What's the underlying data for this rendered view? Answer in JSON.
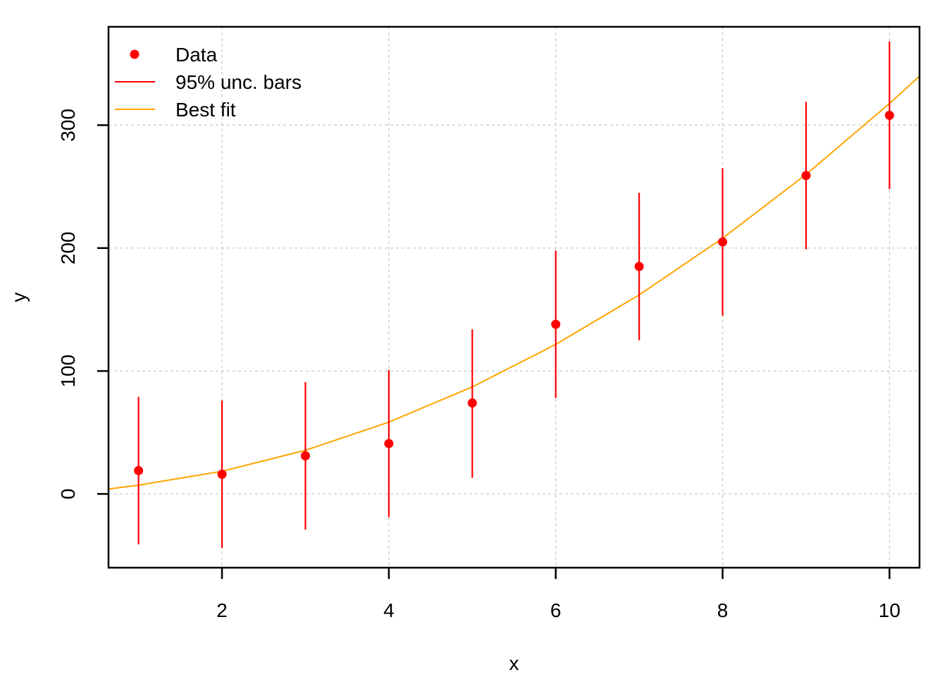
{
  "chart_data": {
    "type": "scatter",
    "title": "",
    "xlabel": "x",
    "ylabel": "y",
    "xlim": [
      0.64,
      10.36
    ],
    "ylim": [
      -60,
      380
    ],
    "x_ticks": [
      2,
      4,
      6,
      8,
      10
    ],
    "y_ticks": [
      0,
      100,
      200,
      300
    ],
    "grid": true,
    "legend_position": "top-left",
    "colors": {
      "data": "#ff0000",
      "bars": "#ff0000",
      "fit": "#ffa500"
    },
    "legend": [
      {
        "label": "Data",
        "kind": "point",
        "color": "#ff0000"
      },
      {
        "label": "95% unc. bars",
        "kind": "line",
        "color": "#ff0000"
      },
      {
        "label": "Best fit",
        "kind": "line",
        "color": "#ffa500"
      }
    ],
    "series": [
      {
        "kind": "points",
        "x": [
          1,
          2,
          3,
          4,
          5,
          6,
          7,
          8,
          9,
          10
        ],
        "y": [
          19,
          16,
          31,
          41,
          74,
          138,
          185,
          205,
          259,
          308
        ],
        "lower": [
          -41,
          -44,
          -29,
          -19,
          13,
          78,
          125,
          145,
          199,
          248
        ],
        "upper": [
          79,
          76,
          91,
          101,
          134,
          198,
          245,
          265,
          319,
          368
        ]
      },
      {
        "kind": "curve",
        "x": [
          0.64,
          1,
          2,
          3,
          4,
          5,
          6,
          7,
          8,
          9,
          10,
          10.36
        ],
        "y": [
          4,
          7.1,
          18.4,
          35.5,
          58.4,
          87.1,
          121.6,
          161.9,
          208,
          259.9,
          317.6,
          339.9
        ]
      }
    ]
  }
}
